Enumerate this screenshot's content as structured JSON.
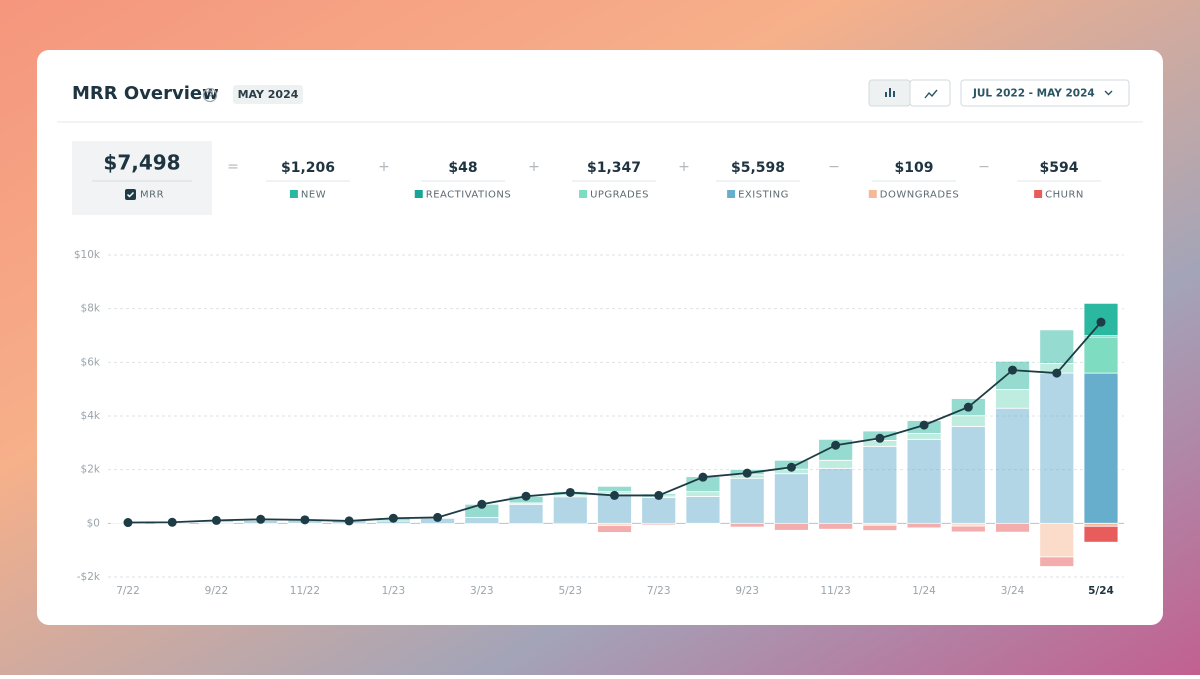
{
  "header": {
    "title": "MRR Overview",
    "badge": "MAY 2024",
    "date_range": "JUL 2022 - MAY 2024"
  },
  "summary": {
    "mrr": "$7,498",
    "items": [
      {
        "operator": "=",
        "value": "$1,206",
        "series": 3
      },
      {
        "operator": "+",
        "value": "$48",
        "series": 2
      },
      {
        "operator": "+",
        "value": "$1,347",
        "series": 1
      },
      {
        "operator": "+",
        "value": "$5,598",
        "series": 0
      },
      {
        "operator": "−",
        "value": "$109",
        "series": 4
      },
      {
        "operator": "−",
        "value": "$594",
        "series": 5
      }
    ]
  },
  "chart_data": {
    "type": "bar",
    "stacked": true,
    "grid": true,
    "categories": [
      "7/22",
      null,
      "9/22",
      null,
      "11/22",
      null,
      "1/23",
      null,
      "3/23",
      null,
      "5/23",
      null,
      "7/23",
      null,
      "9/23",
      null,
      "11/23",
      null,
      "1/24",
      null,
      "3/24",
      null,
      "5/24"
    ],
    "series": [
      {
        "name": "EXISTING",
        "color": "#67aecd",
        "values": [
          0,
          30,
          40,
          110,
          150,
          130,
          90,
          190,
          220,
          710,
          990,
          1100,
          960,
          1000,
          1680,
          1850,
          2050,
          2870,
          3130,
          3610,
          4290,
          5600,
          5598
        ]
      },
      {
        "name": "UPGRADES",
        "color": "#7edcc0",
        "values": [
          0,
          0,
          0,
          0,
          0,
          0,
          0,
          0,
          0,
          50,
          60,
          80,
          60,
          180,
          130,
          170,
          300,
          220,
          220,
          400,
          700,
          360,
          1347
        ]
      },
      {
        "name": "REACTIVATIONS",
        "color": "#16a596",
        "values": [
          0,
          0,
          0,
          0,
          0,
          0,
          0,
          0,
          0,
          0,
          0,
          0,
          0,
          0,
          0,
          0,
          0,
          0,
          0,
          0,
          0,
          0,
          48
        ]
      },
      {
        "name": "NEW",
        "color": "#2bb8a0",
        "values": [
          30,
          10,
          70,
          40,
          0,
          0,
          100,
          30,
          490,
          250,
          140,
          200,
          80,
          560,
          200,
          330,
          780,
          350,
          480,
          640,
          1050,
          1250,
          1206
        ]
      },
      {
        "name": "DOWNGRADES",
        "color": "#f7b896",
        "values": [
          0,
          0,
          0,
          0,
          0,
          0,
          0,
          0,
          0,
          0,
          0,
          -80,
          0,
          0,
          0,
          0,
          0,
          -70,
          0,
          -100,
          0,
          -1250,
          -109
        ]
      },
      {
        "name": "CHURN",
        "color": "#e85c5c",
        "values": [
          0,
          0,
          0,
          0,
          -20,
          -40,
          0,
          0,
          0,
          0,
          -40,
          -260,
          -60,
          -20,
          -140,
          -260,
          -220,
          -200,
          -170,
          -220,
          -330,
          -360,
          -594
        ]
      },
      {
        "name": "MRR",
        "type": "line",
        "color": "#1d3c45",
        "values": [
          30,
          40,
          110,
          150,
          130,
          90,
          190,
          220,
          710,
          1010,
          1150,
          1040,
          1040,
          1720,
          1870,
          2090,
          2910,
          3170,
          3660,
          4330,
          5710,
          5600,
          7498
        ]
      }
    ],
    "ylim": [
      -2000,
      10000
    ],
    "yticks": [
      {
        "value": -2000,
        "label": "-$2k"
      },
      {
        "value": 0,
        "label": "$0"
      },
      {
        "value": 2000,
        "label": "$2k"
      },
      {
        "value": 4000,
        "label": "$4k"
      },
      {
        "value": 6000,
        "label": "$6k"
      },
      {
        "value": 8000,
        "label": "$8k"
      },
      {
        "value": 10000,
        "label": "$10k"
      }
    ]
  }
}
